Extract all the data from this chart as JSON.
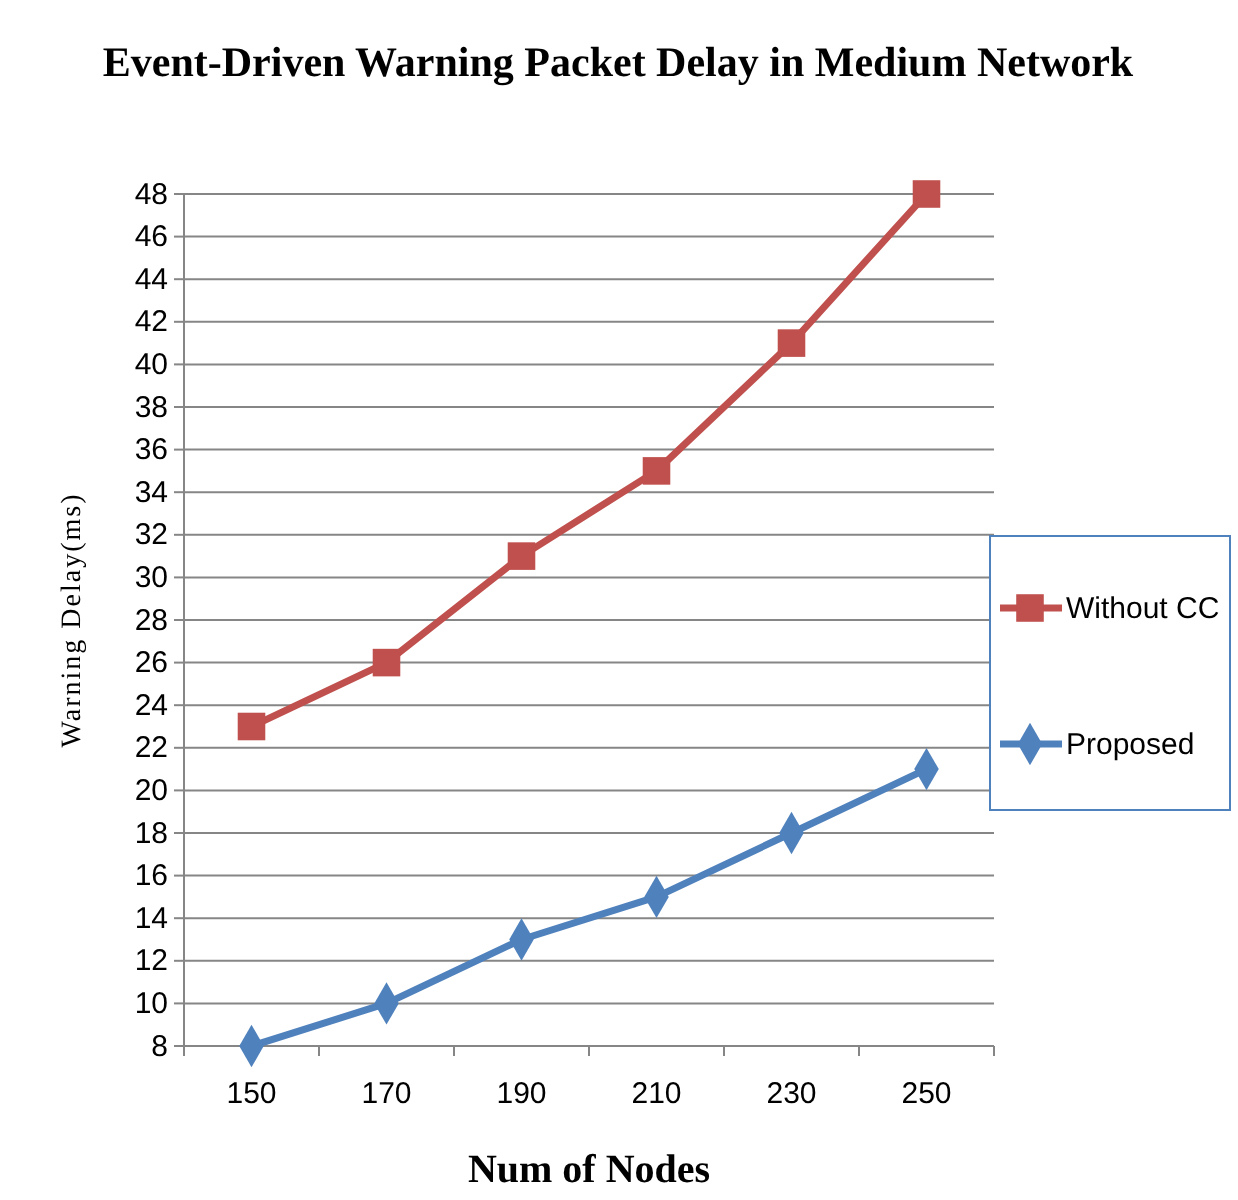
{
  "chart_data": {
    "type": "line",
    "title": "Event-Driven Warning Packet Delay in Medium Network",
    "xlabel": "Num of Nodes",
    "ylabel": "Warning Delay(ms)",
    "categories": [
      "150",
      "170",
      "190",
      "210",
      "230",
      "250"
    ],
    "series": [
      {
        "name": "Without CC",
        "color": "#c0504d",
        "marker": "square",
        "values": [
          23,
          26,
          31,
          35,
          41,
          48
        ]
      },
      {
        "name": "Proposed",
        "color": "#4f81bd",
        "marker": "diamond",
        "values": [
          8,
          10,
          13,
          15,
          18,
          21
        ]
      }
    ],
    "ylim": [
      8,
      48
    ],
    "yticks": [
      8,
      10,
      12,
      14,
      16,
      18,
      20,
      22,
      24,
      26,
      28,
      30,
      32,
      34,
      36,
      38,
      40,
      42,
      44,
      46,
      48
    ],
    "grid": "y",
    "legend": "right",
    "line_style": "solid"
  }
}
